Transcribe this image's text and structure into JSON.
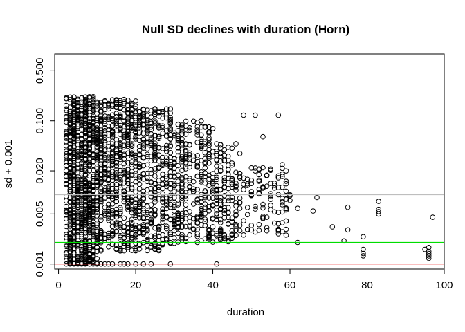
{
  "chart_data": {
    "type": "scatter",
    "title": "Null SD declines with duration (Horn)",
    "xlabel": "duration",
    "ylabel": "sd + 0.001",
    "xlim": [
      -1,
      100
    ],
    "ylim": [
      0.00085,
      0.86
    ],
    "y_scale": "log",
    "x_ticks": [
      0,
      20,
      40,
      60,
      80,
      100
    ],
    "y_ticks": [
      0.001,
      0.005,
      0.02,
      0.1,
      0.5
    ],
    "y_tick_labels": [
      "0.001",
      "0.005",
      "0.020",
      "0.100",
      "0.500"
    ],
    "grid": false,
    "legend": "none",
    "marker": "open-circle",
    "reference_lines": [
      {
        "y": 0.0093,
        "color": "#bebebe"
      },
      {
        "y": 0.002,
        "color": "#00dd00"
      },
      {
        "y": 0.001,
        "color": "#ee0000"
      }
    ],
    "point_bands": [
      {
        "x_range": [
          2,
          10
        ],
        "y_range": [
          0.001,
          0.22
        ],
        "count": 900
      },
      {
        "x_range": [
          10,
          20
        ],
        "y_range": [
          0.0015,
          0.2
        ],
        "count": 550
      },
      {
        "x_range": [
          20,
          30
        ],
        "y_range": [
          0.0015,
          0.15
        ],
        "count": 380
      },
      {
        "x_range": [
          30,
          40
        ],
        "y_range": [
          0.002,
          0.1
        ],
        "count": 280
      },
      {
        "x_range": [
          40,
          46
        ],
        "y_range": [
          0.002,
          0.05
        ],
        "count": 140
      },
      {
        "x_range": [
          46,
          60
        ],
        "y_range": [
          0.0025,
          0.025
        ],
        "count": 110
      }
    ],
    "points": [
      {
        "x": 2,
        "y": 0.001
      },
      {
        "x": 3,
        "y": 0.001
      },
      {
        "x": 4,
        "y": 0.001
      },
      {
        "x": 5,
        "y": 0.001
      },
      {
        "x": 6,
        "y": 0.001
      },
      {
        "x": 7,
        "y": 0.001
      },
      {
        "x": 8,
        "y": 0.001
      },
      {
        "x": 9,
        "y": 0.001
      },
      {
        "x": 10,
        "y": 0.001
      },
      {
        "x": 11,
        "y": 0.001
      },
      {
        "x": 12,
        "y": 0.001
      },
      {
        "x": 13,
        "y": 0.001
      },
      {
        "x": 14,
        "y": 0.001
      },
      {
        "x": 16,
        "y": 0.001
      },
      {
        "x": 17,
        "y": 0.001
      },
      {
        "x": 18,
        "y": 0.001
      },
      {
        "x": 20,
        "y": 0.001
      },
      {
        "x": 22,
        "y": 0.001
      },
      {
        "x": 24,
        "y": 0.001
      },
      {
        "x": 29,
        "y": 0.001
      },
      {
        "x": 41,
        "y": 0.001
      },
      {
        "x": 48,
        "y": 0.12
      },
      {
        "x": 51,
        "y": 0.12
      },
      {
        "x": 57,
        "y": 0.12
      },
      {
        "x": 53,
        "y": 0.06
      },
      {
        "x": 47,
        "y": 0.035
      },
      {
        "x": 50,
        "y": 0.022
      },
      {
        "x": 52,
        "y": 0.011
      },
      {
        "x": 55,
        "y": 0.009
      },
      {
        "x": 58,
        "y": 0.018
      },
      {
        "x": 60,
        "y": 0.009
      },
      {
        "x": 62,
        "y": 0.006
      },
      {
        "x": 62,
        "y": 0.002
      },
      {
        "x": 59,
        "y": 0.004
      },
      {
        "x": 57,
        "y": 0.003
      },
      {
        "x": 54,
        "y": 0.0045
      },
      {
        "x": 49,
        "y": 0.003
      },
      {
        "x": 66,
        "y": 0.0055
      },
      {
        "x": 67,
        "y": 0.0085
      },
      {
        "x": 71,
        "y": 0.0033
      },
      {
        "x": 74,
        "y": 0.0021
      },
      {
        "x": 75,
        "y": 0.003
      },
      {
        "x": 75,
        "y": 0.0062
      },
      {
        "x": 79,
        "y": 0.0024
      },
      {
        "x": 79,
        "y": 0.0016
      },
      {
        "x": 79,
        "y": 0.0014
      },
      {
        "x": 79,
        "y": 0.0013
      },
      {
        "x": 83,
        "y": 0.0075
      },
      {
        "x": 83,
        "y": 0.0058
      },
      {
        "x": 83,
        "y": 0.0054
      },
      {
        "x": 83,
        "y": 0.005
      },
      {
        "x": 95,
        "y": 0.0016
      },
      {
        "x": 96,
        "y": 0.0017
      },
      {
        "x": 96,
        "y": 0.0015
      },
      {
        "x": 96,
        "y": 0.0014
      },
      {
        "x": 96,
        "y": 0.0013
      },
      {
        "x": 96,
        "y": 0.0012
      },
      {
        "x": 97,
        "y": 0.0045
      }
    ]
  }
}
